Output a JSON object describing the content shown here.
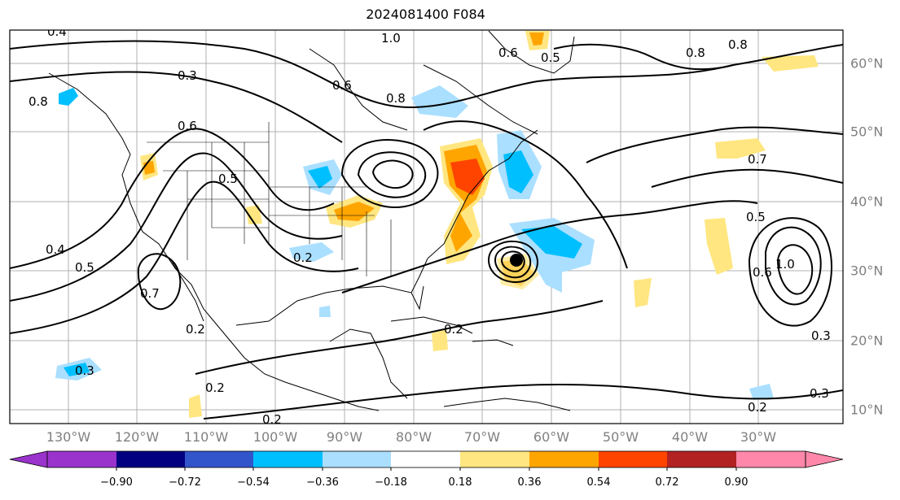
{
  "title": "2024081400 F084",
  "axes": {
    "longitude_labels": [
      {
        "text": "130°W"
      },
      {
        "text": "120°W"
      },
      {
        "text": "110°W"
      },
      {
        "text": "100°W"
      },
      {
        "text": "90°W"
      },
      {
        "text": "80°W"
      },
      {
        "text": "70°W"
      },
      {
        "text": "60°W"
      },
      {
        "text": "50°W"
      },
      {
        "text": "40°W"
      },
      {
        "text": "30°W"
      }
    ],
    "latitude_labels": [
      {
        "text": "60°N"
      },
      {
        "text": "50°N"
      },
      {
        "text": "40°N"
      },
      {
        "text": "30°N"
      },
      {
        "text": "20°N"
      },
      {
        "text": "10°N"
      }
    ],
    "label_color": "#808080"
  },
  "contour_labels": [
    {
      "text": "0.4"
    },
    {
      "text": "1.0"
    },
    {
      "text": "0.6"
    },
    {
      "text": "0.5"
    },
    {
      "text": "0.8"
    },
    {
      "text": "0.8"
    },
    {
      "text": "0.3"
    },
    {
      "text": "0.8"
    },
    {
      "text": "0.6"
    },
    {
      "text": "0.8"
    },
    {
      "text": "0.6"
    },
    {
      "text": "0.5"
    },
    {
      "text": "0.4"
    },
    {
      "text": "0.5"
    },
    {
      "text": "0.7"
    },
    {
      "text": "0.2"
    },
    {
      "text": "0.2"
    },
    {
      "text": "0.2"
    },
    {
      "text": "0.3"
    },
    {
      "text": "0.2"
    },
    {
      "text": "0.7"
    },
    {
      "text": "0.5"
    },
    {
      "text": "0.6"
    },
    {
      "text": "1.0"
    },
    {
      "text": "0.3"
    },
    {
      "text": "0.3"
    },
    {
      "text": "0.2"
    },
    {
      "text": "0.2"
    }
  ],
  "colorbar": {
    "colors": [
      "#9933cc",
      "#000080",
      "#3355cc",
      "#00bfff",
      "#aadfff",
      "#ffffff",
      "#ffe680",
      "#ffa500",
      "#ff4400",
      "#b22222",
      "#ff88aa"
    ],
    "tick_labels": [
      {
        "text": "−0.90"
      },
      {
        "text": "−0.72"
      },
      {
        "text": "−0.54"
      },
      {
        "text": "−0.36"
      },
      {
        "text": "−0.18"
      },
      {
        "text": "0.18"
      },
      {
        "text": "0.36"
      },
      {
        "text": "0.54"
      },
      {
        "text": "0.72"
      },
      {
        "text": "0.90"
      }
    ]
  }
}
